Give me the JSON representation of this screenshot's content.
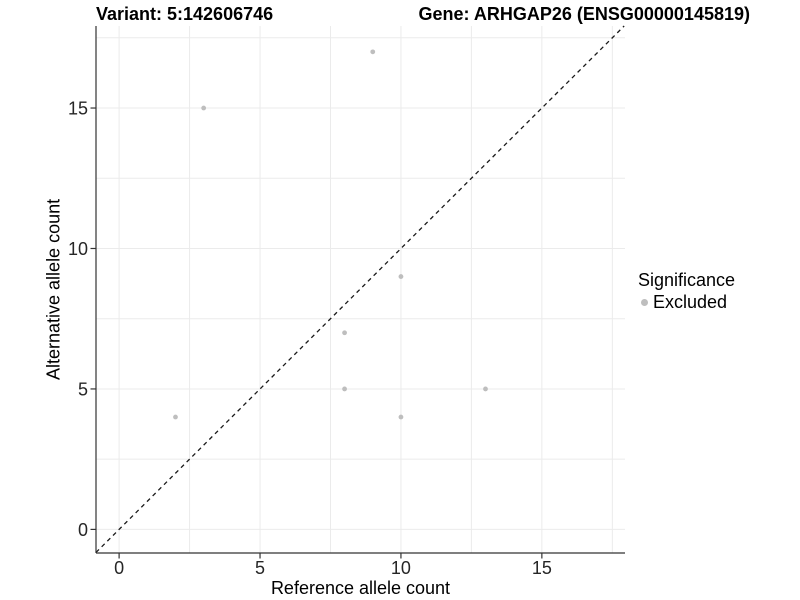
{
  "header": {
    "variant_title": "Variant: 5:142606746",
    "gene_title": "Gene: ARHGAP26 (ENSG00000145819)"
  },
  "chart_data": {
    "type": "scatter",
    "title_left": "Variant: 5:142606746",
    "title_right": "Gene: ARHGAP26 (ENSG00000145819)",
    "xlabel": "Reference allele count",
    "ylabel": "Alternative allele count",
    "xlim": [
      -0.82,
      17.95
    ],
    "ylim": [
      -0.84,
      17.92
    ],
    "x_ticks": [
      0,
      5,
      10,
      15
    ],
    "y_ticks": [
      0,
      5,
      10,
      15
    ],
    "x_minor": [
      2.5,
      7.5,
      12.5,
      17.5
    ],
    "y_minor": [
      2.5,
      7.5,
      12.5,
      17.5
    ],
    "grid": true,
    "series": [
      {
        "name": "Excluded",
        "color": "#bebebe",
        "points": [
          [
            9,
            17
          ],
          [
            3,
            15
          ],
          [
            10,
            9
          ],
          [
            8,
            7
          ],
          [
            8,
            5
          ],
          [
            13,
            5
          ],
          [
            2,
            4
          ],
          [
            10,
            4
          ]
        ]
      }
    ],
    "identity_line": {
      "slope": 1,
      "intercept": 0,
      "style": "dashed",
      "color": "#1a1a1a"
    },
    "legend": {
      "title": "Significance",
      "position": "right",
      "items": [
        {
          "label": "Excluded",
          "color": "#bebebe"
        }
      ]
    },
    "colors": {
      "background": "#ffffff",
      "grid": "#ebebeb",
      "axis_line": "#333333",
      "tick_text": "#262626",
      "point": "#bebebe"
    }
  }
}
